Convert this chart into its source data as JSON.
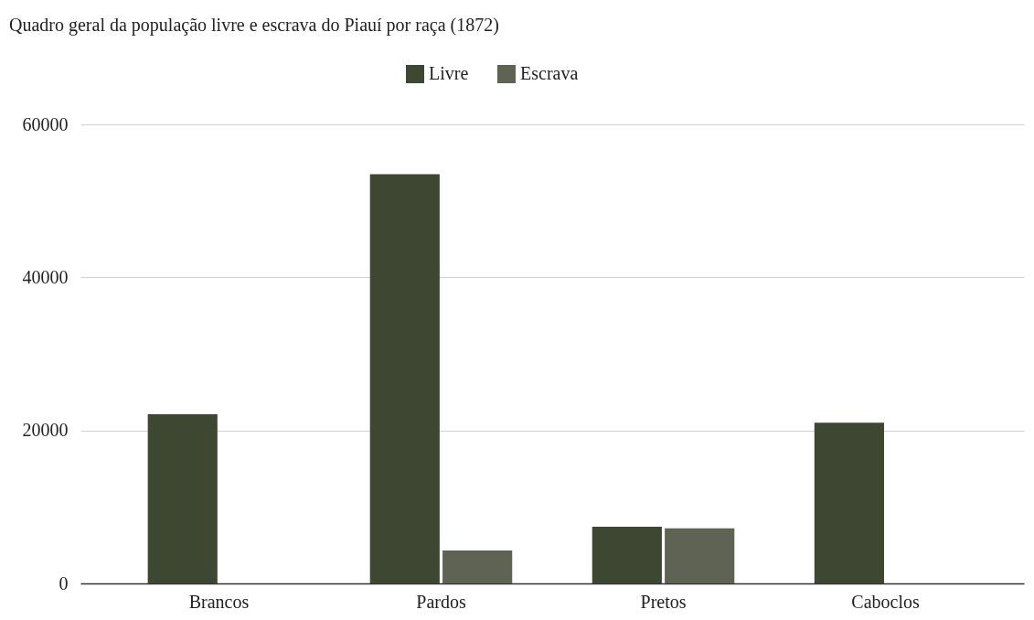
{
  "chart_data": {
    "type": "bar",
    "title": "Quadro geral da população livre e escrava do Piauí por raça (1872)",
    "categories": [
      "Brancos",
      "Pardos",
      "Pretos",
      "Caboclos"
    ],
    "series": [
      {
        "name": "Livre",
        "color": "#3e4732",
        "values": [
          22100,
          53500,
          7400,
          21000
        ]
      },
      {
        "name": "Escrava",
        "color": "#5f6353",
        "values": [
          0,
          4300,
          7200,
          0
        ]
      }
    ],
    "ylim": [
      0,
      60000
    ],
    "yticks": [
      0,
      20000,
      40000,
      60000
    ],
    "grid": "y",
    "legend": "top"
  }
}
